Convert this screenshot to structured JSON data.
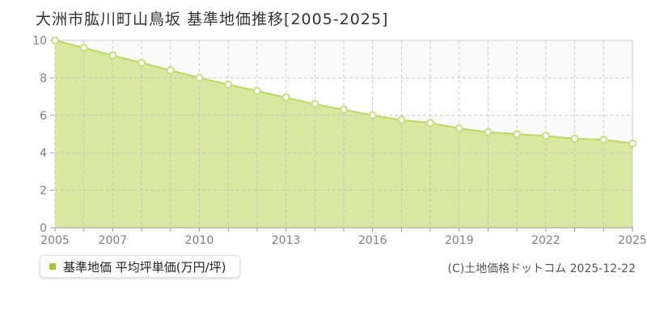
{
  "title": "大洲市肱川町山鳥坂 基準地価推移[2005-2025]",
  "legend": {
    "label": "基準地価 平均坪単価(万円/坪)",
    "marker_icon": "green-square"
  },
  "copyright": "(C)土地価格ドットコム 2025-12-22",
  "colors": {
    "area_fill": "#d9e7a0",
    "line": "#bfd765",
    "marker_fill": "#fffef8",
    "marker_stroke": "#c8dd80",
    "legend_marker": "#a4c639",
    "grid": "#c4c4c4",
    "axis": "#999999",
    "plot_border": "#cccccc",
    "band_shade": "#fafafa",
    "tick_label": "#808080",
    "title_text": "#333333",
    "copyright_text": "#555555"
  },
  "chart_data": {
    "type": "area",
    "title": "大洲市肱川町山鳥坂 基準地価推移[2005-2025]",
    "series_name": "基準地価 平均坪単価(万円/坪)",
    "x": [
      2005,
      2006,
      2007,
      2008,
      2009,
      2010,
      2011,
      2012,
      2013,
      2014,
      2015,
      2016,
      2017,
      2018,
      2019,
      2020,
      2021,
      2022,
      2023,
      2024,
      2025
    ],
    "values": [
      10.0,
      9.6,
      9.2,
      8.8,
      8.4,
      8.0,
      7.65,
      7.3,
      6.95,
      6.6,
      6.3,
      6.0,
      5.75,
      5.6,
      5.3,
      5.1,
      5.0,
      4.9,
      4.75,
      4.7,
      4.5
    ],
    "xlabel": "",
    "ylabel": "万円/坪",
    "ylim": [
      0,
      10
    ],
    "y_ticks": [
      0,
      2,
      4,
      6,
      8,
      10
    ],
    "x_tick_labels": [
      "2005",
      "2007",
      "2010",
      "2013",
      "2016",
      "2019",
      "2022",
      "2025"
    ],
    "grid": true,
    "grid_style": "dashed",
    "legend_position": "bottom-left"
  }
}
